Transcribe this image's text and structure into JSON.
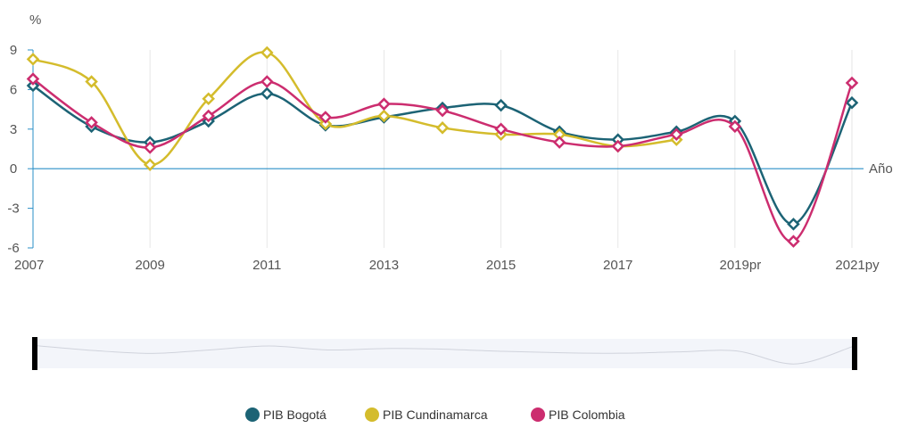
{
  "chart_data": {
    "type": "line",
    "y_axis_unit_label": "%",
    "x_axis_title": "Año",
    "x": [
      2007,
      2008,
      2009,
      2010,
      2011,
      2012,
      2013,
      2014,
      2015,
      2016,
      2017,
      2018,
      2019,
      2020,
      2021
    ],
    "x_tick_labels": [
      {
        "x": 2007,
        "label": "2007"
      },
      {
        "x": 2009,
        "label": "2009"
      },
      {
        "x": 2011,
        "label": "2011"
      },
      {
        "x": 2013,
        "label": "2013"
      },
      {
        "x": 2015,
        "label": "2015"
      },
      {
        "x": 2017,
        "label": "2017"
      },
      {
        "x": 2019,
        "label": "2019pr"
      },
      {
        "x": 2021,
        "label": "2021py"
      }
    ],
    "y_ticks": [
      "9",
      "6",
      "3",
      "0",
      "-3",
      "-6"
    ],
    "ylim": [
      -6,
      9
    ],
    "xlim": [
      2007,
      2021
    ],
    "series": [
      {
        "name": "PIB Bogotá",
        "color": "#1c6375",
        "values": [
          6.3,
          3.2,
          2.0,
          3.6,
          5.7,
          3.3,
          3.9,
          4.6,
          4.8,
          2.8,
          2.2,
          2.8,
          3.6,
          -4.2,
          5.0
        ]
      },
      {
        "name": "PIB Cundinamarca",
        "color": "#d4bc2c",
        "values": [
          8.3,
          6.6,
          0.3,
          5.3,
          8.8,
          3.4,
          4.0,
          3.1,
          2.6,
          2.6,
          1.7,
          2.2,
          null,
          null,
          null
        ]
      },
      {
        "name": "PIB Colombia",
        "color": "#cc2d6f",
        "values": [
          6.8,
          3.5,
          1.6,
          4.0,
          6.6,
          3.9,
          4.9,
          4.4,
          3.0,
          2.0,
          1.7,
          2.6,
          3.2,
          -5.5,
          6.5
        ]
      }
    ],
    "grid": "vertical",
    "legend_position": "bottom-center",
    "navigator": true
  }
}
